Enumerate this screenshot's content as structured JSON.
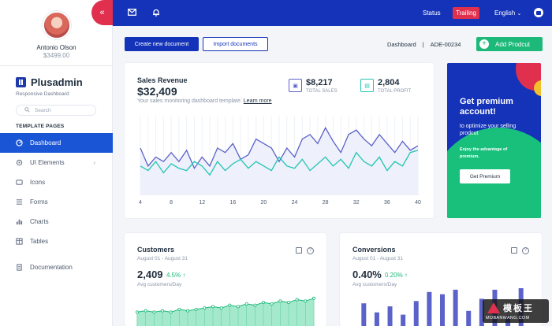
{
  "profile": {
    "name": "Antonio Olson",
    "amount": "$3499.00"
  },
  "brand": {
    "name": "Plusadmin",
    "subtitle": "Responsive Dashboard"
  },
  "search": {
    "placeholder": "Search"
  },
  "sidebar": {
    "section_label": "TEMPLATE PAGES",
    "items": [
      {
        "label": "Dashboard",
        "icon": "dashboard-icon",
        "active": true
      },
      {
        "label": "UI Elements",
        "icon": "ui-elements-icon",
        "has_submenu": true
      },
      {
        "label": "Icons",
        "icon": "icons-icon"
      },
      {
        "label": "Forms",
        "icon": "forms-icon"
      },
      {
        "label": "Charts",
        "icon": "charts-icon"
      },
      {
        "label": "Tables",
        "icon": "tables-icon"
      }
    ],
    "documentation": "Documentation"
  },
  "topbar": {
    "status": "Status",
    "trailing": "Trailing",
    "language": "English",
    "colors": {
      "bar": "#1433b8",
      "badge": "#e0304e"
    }
  },
  "toolbar": {
    "create_label": "Create new document",
    "import_label": "Import documents",
    "breadcrumb_page": "Dashboard",
    "breadcrumb_sep": "|",
    "breadcrumb_id": "ADE-00234",
    "add_label": "Add Prodcut"
  },
  "sales": {
    "title": "Sales Revenue",
    "value": "$32,409",
    "subtitle": "Your sales monitoring dashboard template.",
    "learn_more": "Learn more",
    "total_sales_value": "$8,217",
    "total_sales_label": "TOTAL SALES",
    "total_profit_value": "2,804",
    "total_profit_label": "TOTAL PROFIT"
  },
  "premium": {
    "title": "Get premium account!",
    "text": "to optimize your selling prodcut",
    "small": "Enjoy the advantage of premium.",
    "button": "Get Premium"
  },
  "customers": {
    "title": "Customers",
    "date": "August 01 - August 31",
    "value": "2,409",
    "change": "4.5% ↑",
    "label": "Avg customers/Day"
  },
  "conversions": {
    "title": "Conversions",
    "date": "August 01 - August 31",
    "value": "0.40%",
    "change": "0.20% ↑",
    "label": "Avg customers/Day"
  },
  "watermark": {
    "top": "模板王",
    "bottom": "MOBANWANG.COM"
  },
  "chart_data": [
    {
      "type": "line",
      "x": [
        4,
        5,
        6,
        7,
        8,
        9,
        10,
        11,
        12,
        13,
        14,
        15,
        16,
        17,
        18,
        19,
        20,
        21,
        22,
        23,
        24,
        25,
        26,
        27,
        28,
        29,
        30,
        31,
        32,
        33,
        34,
        35,
        36,
        37,
        38,
        39,
        40
      ],
      "x_ticks": [
        4,
        8,
        12,
        16,
        20,
        24,
        28,
        32,
        36,
        40
      ],
      "series": [
        {
          "color": "#5b62c9",
          "values": [
            46,
            38,
            42,
            40,
            44,
            40,
            45,
            37,
            42,
            38,
            46,
            44,
            48,
            41,
            43,
            50,
            48,
            46,
            40,
            46,
            42,
            50,
            52,
            48,
            55,
            49,
            44,
            52,
            54,
            50,
            47,
            52,
            48,
            44,
            49,
            45,
            47
          ]
        },
        {
          "color": "#22c6b2",
          "values": [
            38,
            36,
            40,
            35,
            39,
            37,
            36,
            40,
            38,
            34,
            40,
            36,
            39,
            41,
            37,
            40,
            38,
            36,
            42,
            38,
            37,
            41,
            36,
            39,
            42,
            38,
            41,
            37,
            44,
            40,
            38,
            42,
            36,
            40,
            38,
            44,
            45
          ]
        }
      ]
    },
    {
      "type": "area",
      "color": "#1db97a",
      "values": [
        40,
        41,
        40,
        41,
        40,
        42,
        41,
        42,
        43,
        44,
        43,
        45,
        44,
        46,
        45,
        47,
        46,
        48,
        47,
        49,
        48,
        50
      ]
    },
    {
      "type": "bar",
      "color": "#5b62c9",
      "values": [
        30,
        18,
        26,
        15,
        33,
        45,
        42,
        48,
        20,
        36,
        48,
        14,
        50
      ]
    }
  ]
}
